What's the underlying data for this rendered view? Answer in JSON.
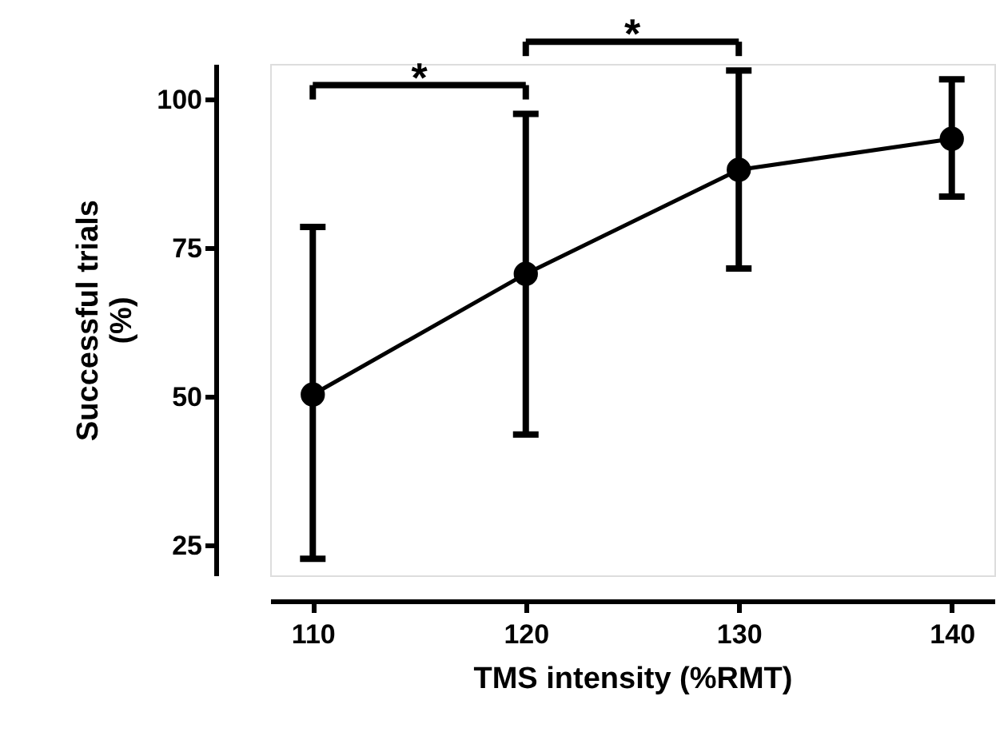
{
  "chart_data": {
    "type": "line",
    "xlabel": "TMS intensity (%RMT)",
    "ylabel": "Successful trials (%)",
    "x": [
      110,
      120,
      130,
      140
    ],
    "series": [
      {
        "color": "#000000",
        "values": [
          50.4,
          70.7,
          88.2,
          93.4
        ],
        "errors": [
          [
            22.8,
            78.6
          ],
          [
            43.7,
            97.6
          ],
          [
            71.6,
            104.9
          ],
          [
            83.7,
            103.4
          ]
        ]
      }
    ],
    "xlim": [
      108,
      142
    ],
    "xticks": [
      110,
      120,
      130,
      140
    ],
    "ylim": [
      20,
      106
    ],
    "yticks": [
      25,
      50,
      75,
      100
    ],
    "marker": "circle",
    "line_style": "solid",
    "grid": false,
    "annotations": [
      "*",
      "*"
    ]
  }
}
